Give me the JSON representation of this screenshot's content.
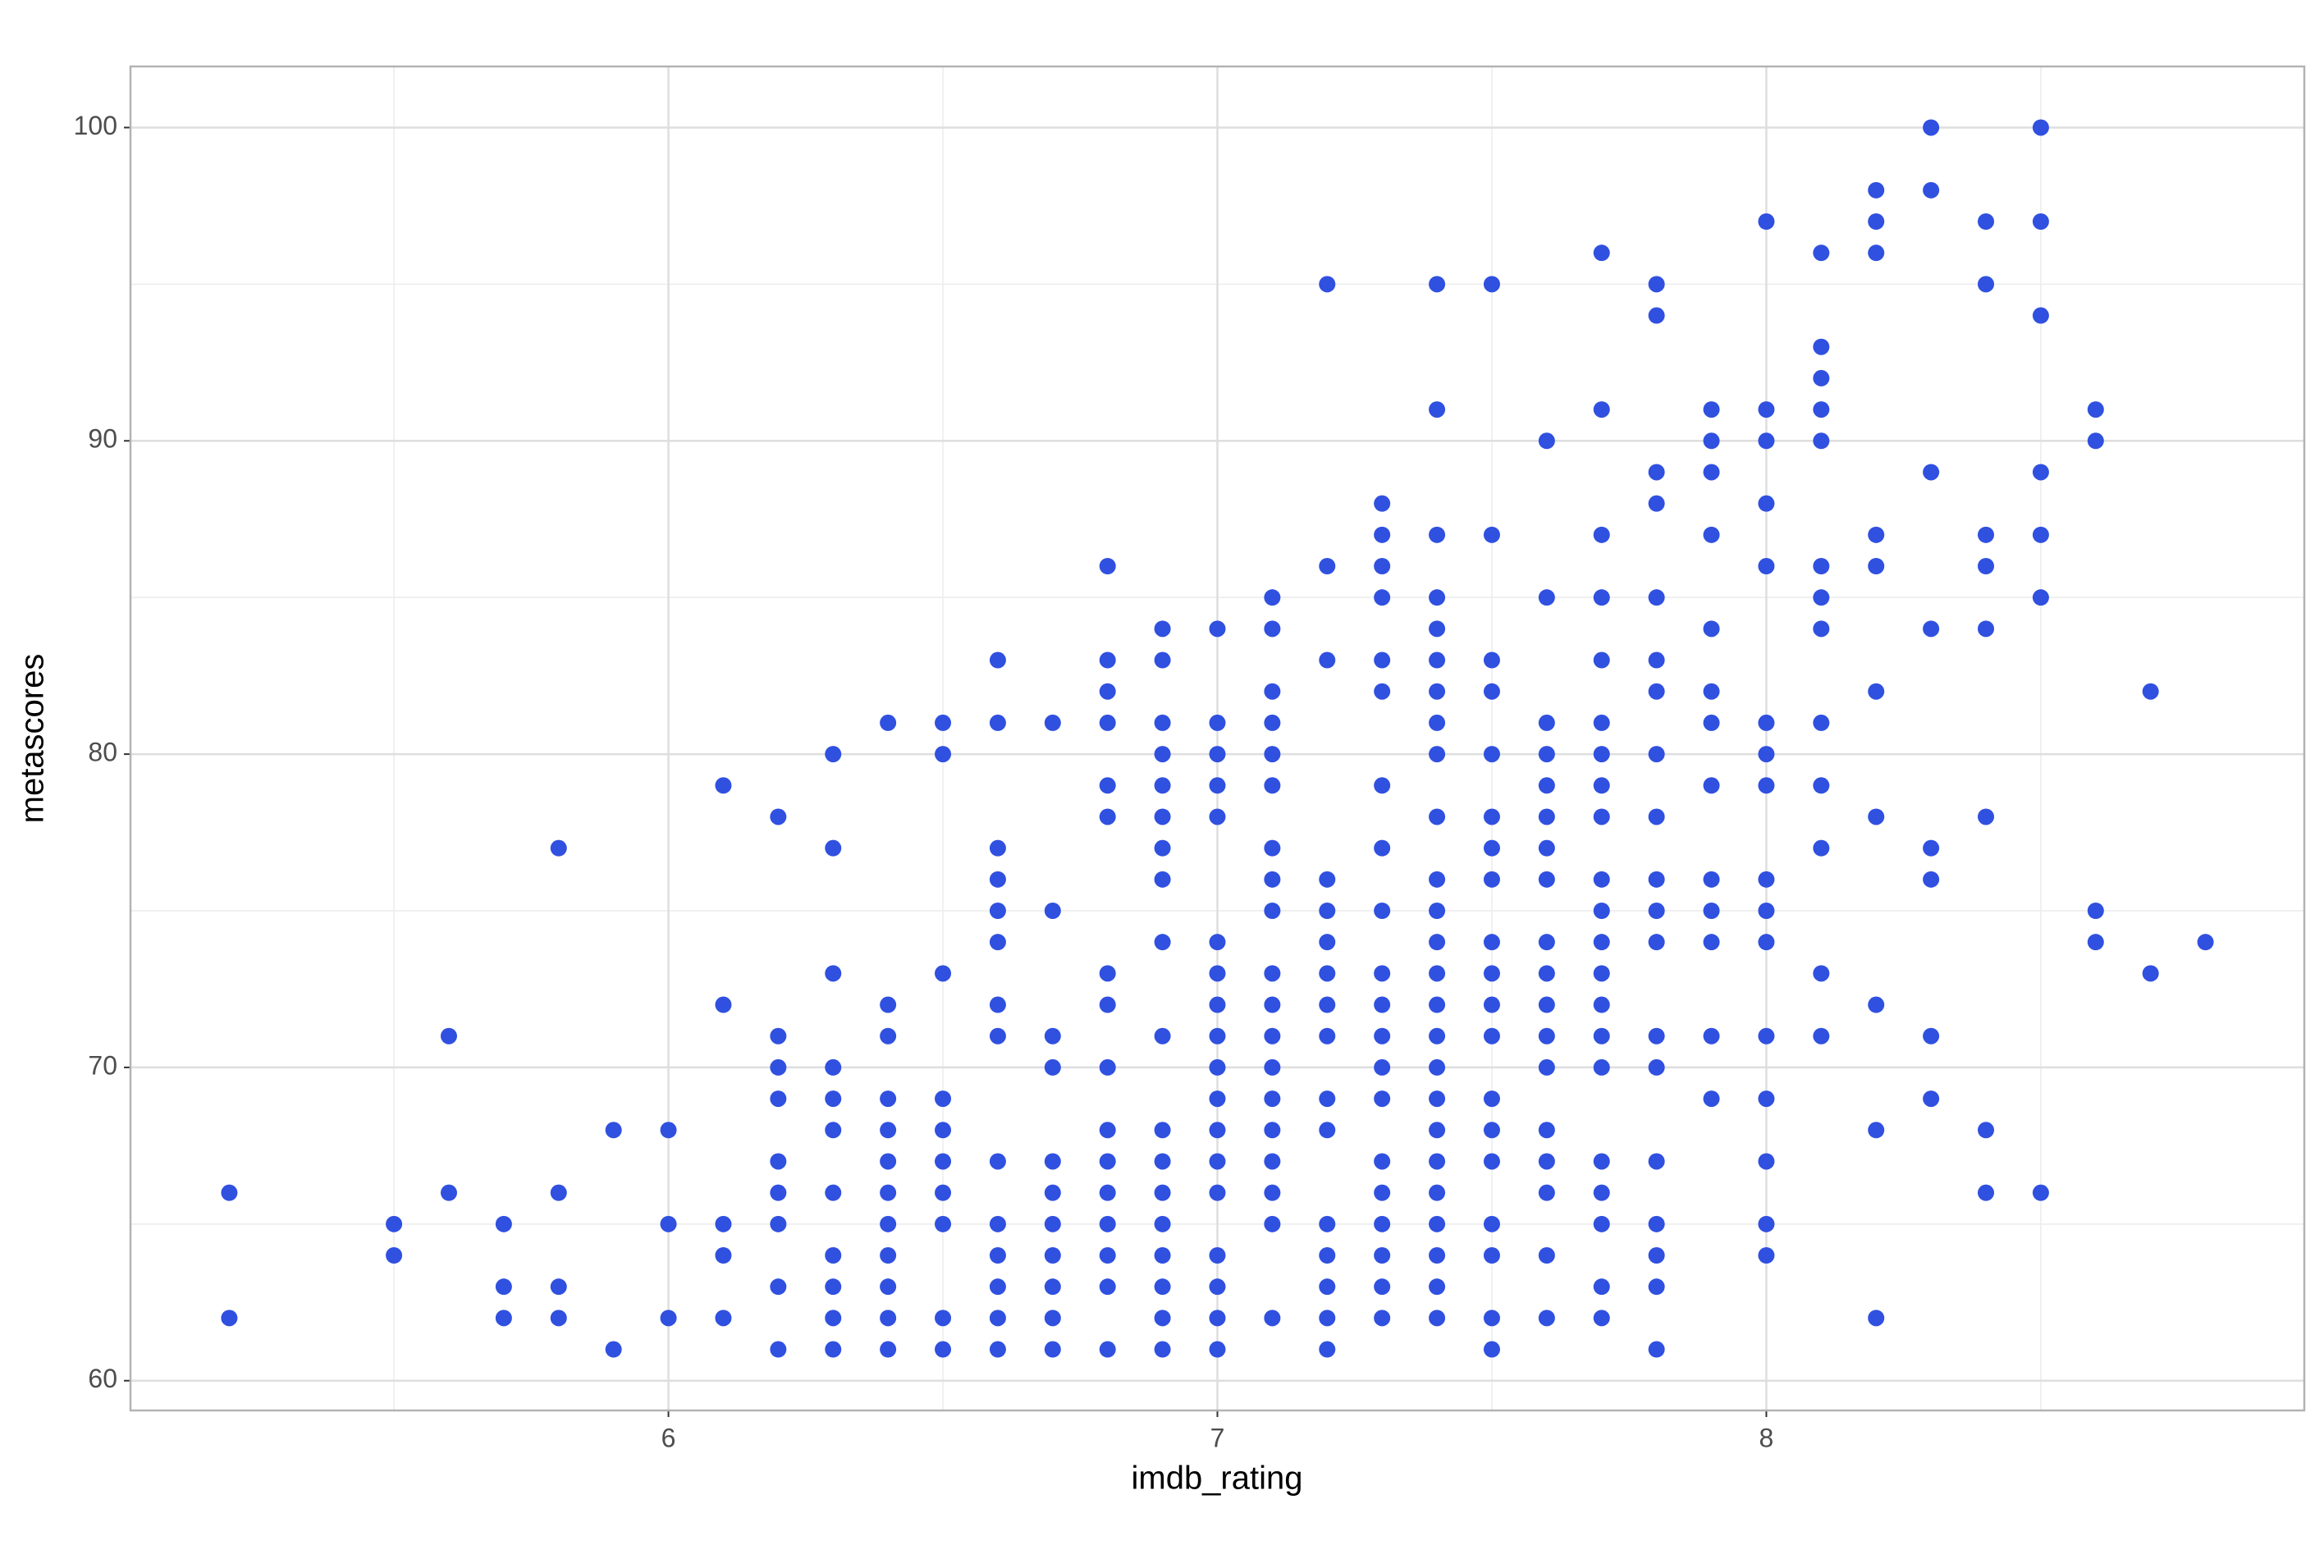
{
  "chart_data": {
    "type": "scatter",
    "x_label": "imdb_rating",
    "y_label": "metascores",
    "color": "#3050e0",
    "grid": true,
    "xlim": [
      5.02,
      8.98
    ],
    "ylim": [
      59.05,
      101.95
    ],
    "xticks": [
      6,
      7,
      8
    ],
    "yticks": [
      60,
      70,
      80,
      90,
      100
    ],
    "x": [
      5.2,
      5.2,
      5.5,
      5.5,
      5.6,
      5.6,
      5.7,
      5.7,
      5.7,
      5.8,
      5.8,
      5.8,
      5.8,
      5.9,
      5.9,
      6.0,
      6.0,
      6.0,
      6.1,
      6.1,
      6.1,
      6.1,
      6.1,
      6.2,
      6.2,
      6.2,
      6.2,
      6.2,
      6.2,
      6.2,
      6.2,
      6.2,
      6.3,
      6.3,
      6.3,
      6.3,
      6.3,
      6.3,
      6.3,
      6.3,
      6.3,
      6.3,
      6.3,
      6.4,
      6.4,
      6.4,
      6.4,
      6.4,
      6.4,
      6.4,
      6.4,
      6.4,
      6.4,
      6.4,
      6.4,
      6.5,
      6.5,
      6.5,
      6.5,
      6.5,
      6.5,
      6.5,
      6.5,
      6.5,
      6.5,
      6.6,
      6.6,
      6.6,
      6.6,
      6.6,
      6.6,
      6.6,
      6.6,
      6.6,
      6.6,
      6.6,
      6.6,
      6.6,
      6.6,
      6.7,
      6.7,
      6.7,
      6.7,
      6.7,
      6.7,
      6.7,
      6.7,
      6.7,
      6.7,
      6.7,
      6.8,
      6.8,
      6.8,
      6.8,
      6.8,
      6.8,
      6.8,
      6.8,
      6.8,
      6.8,
      6.8,
      6.8,
      6.8,
      6.8,
      6.8,
      6.8,
      6.9,
      6.9,
      6.9,
      6.9,
      6.9,
      6.9,
      6.9,
      6.9,
      6.9,
      6.9,
      6.9,
      6.9,
      6.9,
      6.9,
      6.9,
      6.9,
      6.9,
      6.9,
      7.0,
      7.0,
      7.0,
      7.0,
      7.0,
      7.0,
      7.0,
      7.0,
      7.0,
      7.0,
      7.0,
      7.0,
      7.0,
      7.0,
      7.0,
      7.0,
      7.0,
      7.0,
      7.1,
      7.1,
      7.1,
      7.1,
      7.1,
      7.1,
      7.1,
      7.1,
      7.1,
      7.1,
      7.1,
      7.1,
      7.1,
      7.1,
      7.1,
      7.1,
      7.1,
      7.1,
      7.1,
      7.2,
      7.2,
      7.2,
      7.2,
      7.2,
      7.2,
      7.2,
      7.2,
      7.2,
      7.2,
      7.2,
      7.2,
      7.2,
      7.2,
      7.2,
      7.2,
      7.3,
      7.3,
      7.3,
      7.3,
      7.3,
      7.3,
      7.3,
      7.3,
      7.3,
      7.3,
      7.3,
      7.3,
      7.3,
      7.3,
      7.3,
      7.3,
      7.3,
      7.3,
      7.3,
      7.3,
      7.4,
      7.4,
      7.4,
      7.4,
      7.4,
      7.4,
      7.4,
      7.4,
      7.4,
      7.4,
      7.4,
      7.4,
      7.4,
      7.4,
      7.4,
      7.4,
      7.4,
      7.4,
      7.4,
      7.4,
      7.4,
      7.4,
      7.4,
      7.4,
      7.4,
      7.5,
      7.5,
      7.5,
      7.5,
      7.5,
      7.5,
      7.5,
      7.5,
      7.5,
      7.5,
      7.5,
      7.5,
      7.5,
      7.5,
      7.5,
      7.5,
      7.5,
      7.5,
      7.5,
      7.6,
      7.6,
      7.6,
      7.6,
      7.6,
      7.6,
      7.6,
      7.6,
      7.6,
      7.6,
      7.6,
      7.6,
      7.6,
      7.6,
      7.6,
      7.6,
      7.6,
      7.6,
      7.7,
      7.7,
      7.7,
      7.7,
      7.7,
      7.7,
      7.7,
      7.7,
      7.7,
      7.7,
      7.7,
      7.7,
      7.7,
      7.7,
      7.7,
      7.7,
      7.7,
      7.7,
      7.7,
      7.7,
      7.7,
      7.8,
      7.8,
      7.8,
      7.8,
      7.8,
      7.8,
      7.8,
      7.8,
      7.8,
      7.8,
      7.8,
      7.8,
      7.8,
      7.8,
      7.8,
      7.8,
      7.8,
      7.8,
      7.8,
      7.9,
      7.9,
      7.9,
      7.9,
      7.9,
      7.9,
      7.9,
      7.9,
      7.9,
      7.9,
      7.9,
      7.9,
      7.9,
      8.0,
      8.0,
      8.0,
      8.0,
      8.0,
      8.0,
      8.0,
      8.0,
      8.0,
      8.0,
      8.0,
      8.0,
      8.0,
      8.0,
      8.0,
      8.0,
      8.1,
      8.1,
      8.1,
      8.1,
      8.1,
      8.1,
      8.1,
      8.1,
      8.1,
      8.1,
      8.1,
      8.1,
      8.1,
      8.2,
      8.2,
      8.2,
      8.2,
      8.2,
      8.2,
      8.2,
      8.2,
      8.2,
      8.2,
      8.3,
      8.3,
      8.3,
      8.3,
      8.3,
      8.3,
      8.3,
      8.3,
      8.4,
      8.4,
      8.4,
      8.4,
      8.4,
      8.4,
      8.4,
      8.4,
      8.5,
      8.5,
      8.5,
      8.5,
      8.5,
      8.5,
      8.5,
      8.6,
      8.6,
      8.6,
      8.6,
      8.7,
      8.7,
      8.8
    ],
    "y": [
      66,
      62,
      65,
      64,
      71,
      66,
      65,
      63,
      62,
      77,
      66,
      63,
      62,
      68,
      61,
      68,
      65,
      62,
      79,
      72,
      65,
      64,
      62,
      78,
      71,
      70,
      69,
      67,
      66,
      65,
      63,
      61,
      80,
      77,
      73,
      70,
      69,
      68,
      66,
      64,
      63,
      62,
      61,
      81,
      72,
      71,
      69,
      68,
      67,
      66,
      65,
      64,
      63,
      62,
      61,
      81,
      80,
      73,
      69,
      68,
      67,
      66,
      65,
      62,
      61,
      83,
      81,
      77,
      76,
      75,
      74,
      72,
      71,
      67,
      65,
      64,
      63,
      62,
      61,
      81,
      75,
      71,
      70,
      67,
      66,
      65,
      64,
      63,
      62,
      61,
      86,
      83,
      82,
      81,
      79,
      78,
      73,
      72,
      70,
      68,
      67,
      66,
      65,
      64,
      63,
      61,
      84,
      83,
      81,
      80,
      79,
      78,
      77,
      76,
      74,
      71,
      68,
      67,
      66,
      65,
      64,
      63,
      62,
      61,
      84,
      81,
      80,
      79,
      78,
      74,
      73,
      72,
      71,
      70,
      69,
      68,
      67,
      66,
      64,
      63,
      62,
      61,
      85,
      84,
      82,
      81,
      80,
      79,
      77,
      76,
      75,
      73,
      72,
      71,
      70,
      69,
      68,
      67,
      66,
      65,
      62,
      95,
      86,
      83,
      76,
      75,
      74,
      73,
      72,
      71,
      69,
      68,
      65,
      64,
      63,
      62,
      61,
      88,
      87,
      86,
      85,
      83,
      82,
      79,
      77,
      75,
      73,
      72,
      71,
      70,
      69,
      67,
      66,
      65,
      64,
      63,
      62,
      95,
      91,
      87,
      85,
      84,
      83,
      82,
      81,
      80,
      78,
      76,
      75,
      74,
      73,
      72,
      71,
      70,
      69,
      68,
      67,
      66,
      65,
      64,
      63,
      62,
      95,
      87,
      83,
      82,
      80,
      78,
      77,
      76,
      74,
      73,
      72,
      71,
      69,
      68,
      67,
      65,
      64,
      62,
      61,
      90,
      85,
      81,
      80,
      79,
      78,
      77,
      76,
      74,
      73,
      72,
      71,
      70,
      68,
      67,
      66,
      64,
      62,
      96,
      91,
      87,
      85,
      83,
      81,
      80,
      79,
      78,
      76,
      75,
      74,
      73,
      72,
      71,
      70,
      67,
      66,
      65,
      63,
      62,
      95,
      94,
      89,
      88,
      85,
      83,
      82,
      80,
      78,
      76,
      75,
      74,
      71,
      70,
      67,
      65,
      64,
      63,
      61,
      91,
      90,
      89,
      87,
      84,
      82,
      81,
      79,
      76,
      75,
      74,
      71,
      69,
      97,
      91,
      90,
      88,
      86,
      81,
      80,
      79,
      76,
      75,
      74,
      71,
      69,
      67,
      65,
      64,
      96,
      93,
      92,
      91,
      90,
      86,
      85,
      84,
      81,
      79,
      77,
      73,
      71,
      98,
      97,
      96,
      87,
      86,
      82,
      78,
      72,
      68,
      62,
      100,
      98,
      89,
      84,
      77,
      76,
      71,
      69,
      97,
      95,
      87,
      86,
      84,
      78,
      68,
      66,
      100,
      97,
      94,
      89,
      87,
      85,
      66,
      91,
      90,
      75,
      74,
      82,
      73,
      74
    ]
  }
}
